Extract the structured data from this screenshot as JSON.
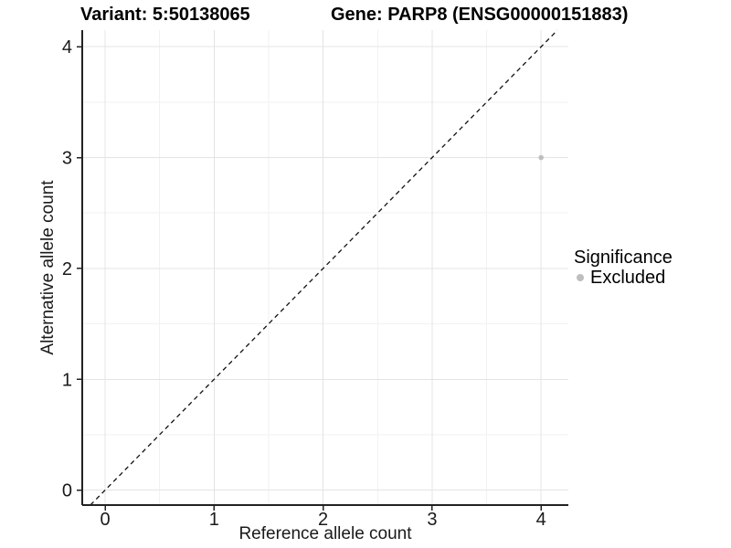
{
  "figure": {
    "title_left": "Variant: 5:50138065",
    "title_right": "Gene: PARP8 (ENSG00000151883)"
  },
  "legend": {
    "title": "Significance",
    "items": [
      {
        "label": "Excluded",
        "marker": "dot-icon",
        "color": "#BEBEBE"
      }
    ]
  },
  "chart_data": {
    "type": "scatter",
    "title": "Variant: 5:50138065   Gene: PARP8 (ENSG00000151883)",
    "xlabel": "Reference allele count",
    "ylabel": "Alternative allele count",
    "xlim": [
      -0.21,
      4.25
    ],
    "ylim": [
      -0.135,
      4.15
    ],
    "xticks": [
      0,
      1,
      2,
      3,
      4
    ],
    "yticks": [
      0,
      1,
      2,
      3,
      4
    ],
    "grid": {
      "major": true,
      "minor": true
    },
    "legend_position": "right",
    "series": [
      {
        "name": "Excluded",
        "color": "#BEBEBE",
        "points": [
          {
            "x": 4,
            "y": 3
          }
        ]
      }
    ],
    "reference_line": {
      "type": "identity",
      "slope": 1,
      "intercept": 0,
      "style": "dashed",
      "color": "#111111"
    }
  },
  "colors": {
    "background": "#FFFFFF",
    "grid_major": "#E4E4E4",
    "grid_minor": "#F2F2F2",
    "axis_line": "#222222",
    "tick_text": "#1A1A1A",
    "point": "#BEBEBE"
  }
}
